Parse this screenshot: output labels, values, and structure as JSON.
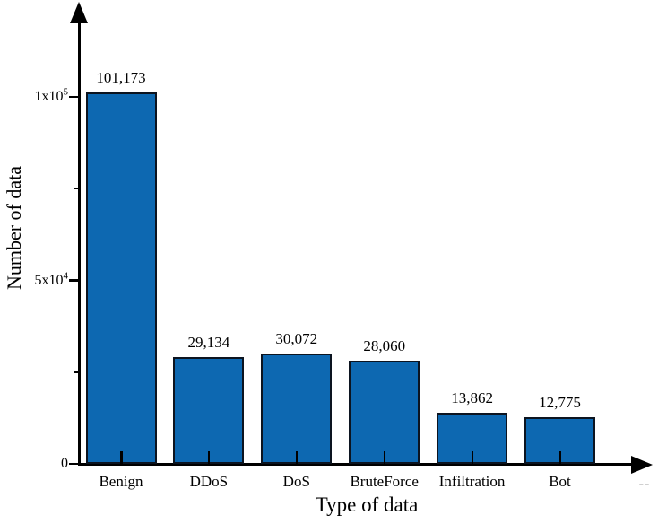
{
  "chart_data": {
    "type": "bar",
    "categories": [
      "Benign",
      "DDoS",
      "DoS",
      "BruteForce",
      "Infiltration",
      "Bot"
    ],
    "values": [
      101173,
      29134,
      30072,
      28060,
      13862,
      12775
    ],
    "value_labels": [
      "101,173",
      "29,134",
      "30,072",
      "28,060",
      "13,862",
      "12,775"
    ],
    "title": "",
    "xlabel": "Type of data",
    "ylabel": "Number of data",
    "x_axis_end_label": "--",
    "ylim": [
      0,
      125000
    ],
    "yticks": [
      {
        "value": 0,
        "base": "0",
        "exp": ""
      },
      {
        "value": 50000,
        "base": "5x10",
        "exp": "4"
      },
      {
        "value": 100000,
        "base": "1x10",
        "exp": "5"
      }
    ],
    "yticks_minor": [
      25000,
      75000
    ],
    "grid": false,
    "legend": "none",
    "bar_color": "#0d68b1",
    "bar_edge_color": "#0c1420",
    "axis_color": "#000000",
    "text_color": "#000000"
  }
}
